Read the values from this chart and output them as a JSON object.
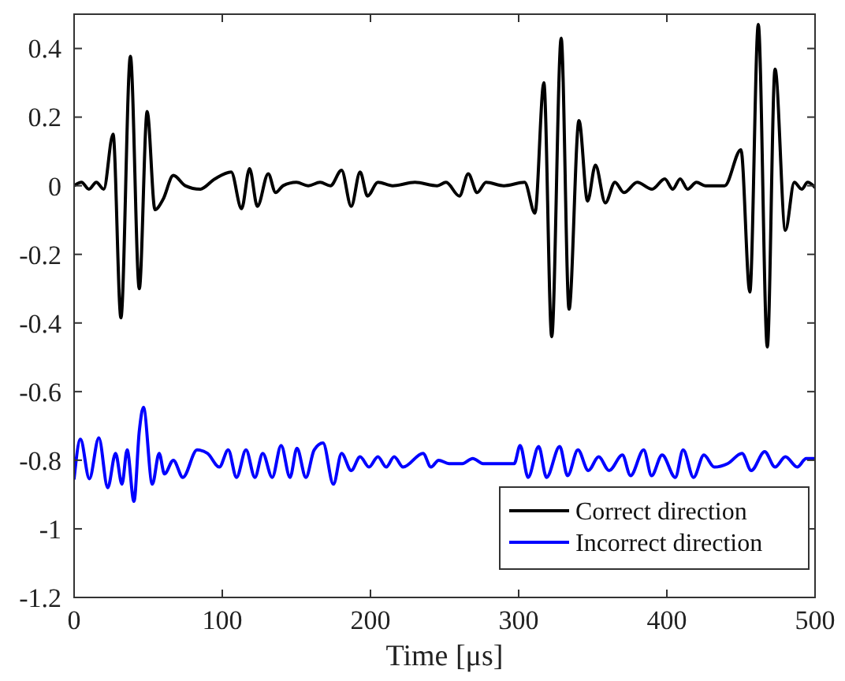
{
  "chart_data": {
    "type": "line",
    "xlabel": "Time [μs]",
    "xlim": [
      0,
      500
    ],
    "ylim": [
      -1.2,
      0.5
    ],
    "xticks": [
      0,
      100,
      200,
      300,
      400,
      500
    ],
    "yticks": [
      -1.2,
      -1,
      -0.8,
      -0.6,
      -0.4,
      -0.2,
      0,
      0.2,
      0.4
    ],
    "grid": false,
    "legend": "bottom right",
    "marker": "none",
    "line_style": "solid",
    "series": [
      {
        "name": "Correct direction",
        "color": "#000000",
        "x": [
          0,
          5,
          10,
          15,
          20,
          26.3,
          31.6,
          38,
          44,
          49.3,
          54.6,
          60,
          67,
          75,
          85,
          95,
          106,
          113,
          118.4,
          123.7,
          131,
          136,
          141,
          150,
          158,
          166,
          173,
          180.5,
          187,
          193,
          198,
          205,
          215,
          230,
          245,
          251,
          260,
          266,
          272,
          278,
          290,
          304,
          311,
          317,
          322.3,
          328.7,
          334,
          340.7,
          346.5,
          351.8,
          358.5,
          365,
          371,
          380,
          390,
          398.6,
          404,
          409,
          414,
          420,
          426,
          439,
          450,
          456,
          461.7,
          467.8,
          473,
          480,
          486,
          491,
          495,
          500
        ],
        "values": [
          0,
          0.01,
          -0.01,
          0.01,
          -0.01,
          0.15,
          -0.385,
          0.377,
          -0.3,
          0.216,
          -0.07,
          -0.04,
          0.03,
          0,
          -0.01,
          0.02,
          0.04,
          -0.067,
          0.05,
          -0.06,
          0.035,
          -0.02,
          0,
          0.01,
          0,
          0.01,
          0,
          0.045,
          -0.06,
          0.04,
          -0.03,
          0.01,
          0,
          0.01,
          0,
          0.01,
          -0.03,
          0.035,
          -0.02,
          0.01,
          0,
          0.01,
          -0.08,
          0.3,
          -0.44,
          0.43,
          -0.36,
          0.19,
          -0.045,
          0.06,
          -0.05,
          0.01,
          -0.02,
          0.01,
          -0.01,
          0.02,
          -0.01,
          0.02,
          -0.01,
          0.01,
          0,
          0,
          0.105,
          -0.31,
          0.47,
          -0.47,
          0.34,
          -0.13,
          0.01,
          -0.01,
          0.01,
          -0.005
        ]
      },
      {
        "name": "Incorrect direction",
        "color": "#0000ff",
        "x": [
          0,
          4.3,
          10.3,
          16.7,
          22.7,
          28,
          32.3,
          35.8,
          40.4,
          44,
          46.8,
          52.8,
          57.4,
          61,
          67,
          73.4,
          83,
          90,
          98,
          104,
          109.6,
          116,
          122,
          127.3,
          133.7,
          139.7,
          145.7,
          150.4,
          156.4,
          162,
          168,
          175,
          180.5,
          187,
          193,
          199,
          205,
          210.6,
          216,
          222,
          235.5,
          240.8,
          246,
          253,
          262,
          269,
          276,
          283,
          297,
          301,
          306.4,
          313.5,
          318.8,
          327.7,
          333,
          340,
          347,
          354,
          361,
          370,
          375.5,
          384.4,
          389.7,
          396.8,
          405.7,
          411,
          418,
          425,
          432,
          441,
          450.7,
          457,
          466,
          473,
          480,
          488,
          494,
          500
        ],
        "values": [
          -0.854,
          -0.739,
          -0.854,
          -0.735,
          -0.88,
          -0.78,
          -0.87,
          -0.77,
          -0.92,
          -0.715,
          -0.646,
          -0.87,
          -0.78,
          -0.84,
          -0.8,
          -0.85,
          -0.77,
          -0.78,
          -0.82,
          -0.77,
          -0.85,
          -0.77,
          -0.85,
          -0.78,
          -0.85,
          -0.757,
          -0.85,
          -0.765,
          -0.85,
          -0.77,
          -0.75,
          -0.87,
          -0.78,
          -0.83,
          -0.79,
          -0.82,
          -0.79,
          -0.82,
          -0.79,
          -0.82,
          -0.78,
          -0.82,
          -0.8,
          -0.81,
          -0.81,
          -0.795,
          -0.81,
          -0.81,
          -0.81,
          -0.757,
          -0.85,
          -0.76,
          -0.85,
          -0.76,
          -0.845,
          -0.77,
          -0.83,
          -0.79,
          -0.83,
          -0.785,
          -0.845,
          -0.77,
          -0.845,
          -0.785,
          -0.85,
          -0.77,
          -0.85,
          -0.785,
          -0.82,
          -0.81,
          -0.78,
          -0.83,
          -0.775,
          -0.82,
          -0.79,
          -0.82,
          -0.795,
          -0.795
        ]
      }
    ]
  }
}
